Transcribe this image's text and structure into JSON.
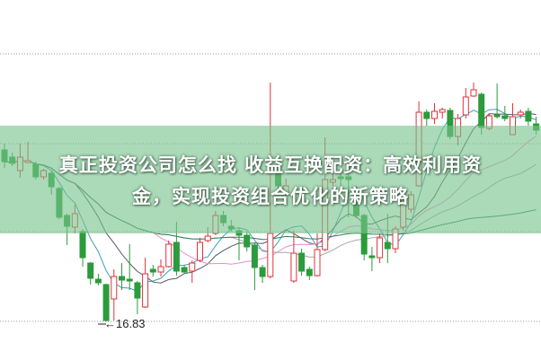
{
  "title": {
    "line1": "真正投资公司怎么找 收益互换配资：高效利用资",
    "line2": "金，实现投资组合优化的新策略"
  },
  "colors": {
    "up": "#e0313b",
    "down": "#2b9b3c",
    "banner": "#78c38c",
    "ma5": "#3f9fb5",
    "ma10": "#555b66",
    "ma20": "#e68ed6",
    "ma30": "#a8a8a8",
    "ma60": "#2e7d5e"
  },
  "chart_data": {
    "type": "candlestick",
    "low_annotation": "←16.83",
    "low_value": 16.83,
    "grid": "dotted horizontal",
    "moving_averages": [
      5,
      10,
      20,
      30,
      60
    ],
    "ohlc": [
      [
        20.65,
        20.39,
        20.79,
        20.25
      ],
      [
        20.49,
        20.35,
        20.59,
        20.29
      ],
      [
        20.19,
        20.49,
        20.79,
        20.03
      ],
      [
        20.37,
        20.41,
        20.83,
        20.37
      ],
      [
        20.33,
        20.05,
        20.39,
        19.99
      ],
      [
        20.05,
        20.19,
        20.23,
        19.99
      ],
      [
        20.13,
        19.83,
        20.19,
        19.65
      ],
      [
        19.79,
        19.15,
        19.83,
        19.11
      ],
      [
        19.19,
        18.95,
        19.23,
        18.53
      ],
      [
        18.93,
        19.23,
        19.43,
        18.79
      ],
      [
        18.83,
        18.25,
        18.89,
        18.05
      ],
      [
        18.13,
        17.79,
        18.15,
        17.65
      ],
      [
        17.77,
        17.69,
        17.89,
        17.63
      ],
      [
        17.65,
        16.85,
        17.67,
        16.83
      ],
      [
        17.33,
        17.83,
        17.99,
        16.85
      ],
      [
        17.83,
        17.75,
        18.13,
        17.53
      ],
      [
        17.77,
        17.73,
        18.55,
        17.53
      ],
      [
        17.69,
        17.35,
        17.73,
        16.99
      ],
      [
        17.15,
        17.89,
        18.25,
        17.13
      ],
      [
        17.99,
        17.93,
        18.09,
        17.83
      ],
      [
        17.93,
        18.05,
        18.21,
        17.83
      ],
      [
        18.05,
        18.55,
        18.63,
        18.03
      ],
      [
        18.59,
        17.95,
        19.05,
        17.85
      ],
      [
        18.03,
        17.93,
        18.09,
        17.89
      ],
      [
        17.95,
        18.13,
        18.19,
        17.69
      ],
      [
        18.19,
        18.59,
        18.69,
        18.15
      ],
      [
        18.63,
        18.73,
        18.93,
        18.59
      ],
      [
        18.79,
        19.19,
        19.29,
        18.75
      ],
      [
        19.19,
        19.03,
        19.29,
        18.95
      ],
      [
        18.95,
        18.89,
        19.09,
        18.83
      ],
      [
        18.85,
        18.75,
        18.93,
        18.19
      ],
      [
        18.75,
        18.49,
        18.83,
        18.39
      ],
      [
        18.53,
        18.03,
        18.59,
        17.53
      ],
      [
        18.03,
        17.83,
        18.09,
        17.69
      ],
      [
        17.83,
        18.79,
        22.15,
        17.79
      ],
      [
        20.13,
        19.85,
        20.29,
        19.69
      ],
      [
        19.65,
        19.85,
        20.01,
        19.55
      ],
      [
        17.73,
        18.35,
        18.85,
        17.69
      ],
      [
        18.35,
        17.95,
        18.45,
        17.85
      ],
      [
        17.99,
        17.85,
        18.05,
        17.75
      ],
      [
        17.85,
        18.43,
        18.79,
        17.83
      ],
      [
        18.43,
        19.99,
        20.93,
        18.39
      ],
      [
        19.93,
        19.99,
        20.15,
        19.85
      ],
      [
        20.05,
        20.01,
        20.15,
        19.85
      ],
      [
        20.05,
        19.99,
        20.29,
        19.15
      ],
      [
        19.59,
        19.19,
        19.69,
        19.13
      ],
      [
        19.19,
        18.33,
        19.23,
        18.19
      ],
      [
        18.29,
        18.25,
        18.49,
        17.95
      ],
      [
        18.25,
        18.69,
        18.79,
        18.13
      ],
      [
        18.59,
        18.45,
        19.23,
        18.13
      ],
      [
        18.45,
        18.89,
        18.95,
        18.35
      ],
      [
        18.93,
        19.53,
        19.59,
        18.85
      ],
      [
        19.33,
        19.65,
        19.73,
        19.25
      ],
      [
        19.85,
        21.49,
        21.73,
        19.83
      ],
      [
        21.49,
        21.35,
        21.55,
        21.19
      ],
      [
        21.35,
        21.51,
        21.69,
        21.23
      ],
      [
        21.49,
        21.55,
        21.59,
        21.35
      ],
      [
        21.53,
        20.95,
        21.59,
        20.89
      ],
      [
        20.95,
        21.35,
        21.45,
        20.75
      ],
      [
        21.43,
        21.83,
        22.03,
        21.35
      ],
      [
        21.85,
        21.99,
        22.15,
        21.83
      ],
      [
        21.89,
        21.15,
        21.93,
        20.99
      ],
      [
        21.13,
        21.41,
        21.45,
        21.09
      ],
      [
        21.43,
        21.39,
        22.13,
        21.35
      ],
      [
        21.41,
        21.35,
        21.63,
        21.29
      ],
      [
        20.99,
        21.39,
        21.69,
        20.99
      ],
      [
        21.43,
        21.49,
        21.55,
        21.35
      ],
      [
        21.51,
        21.29,
        21.59,
        21.19
      ],
      [
        21.23,
        21.09,
        21.39,
        20.99
      ]
    ]
  }
}
